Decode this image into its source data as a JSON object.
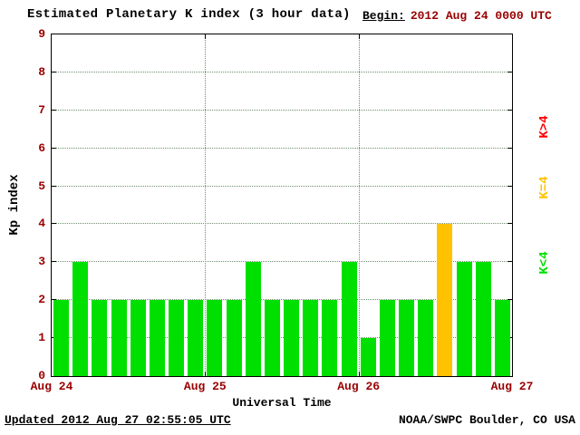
{
  "begin": {
    "label": "Begin:",
    "value": "2012 Aug 24 0000 UTC"
  },
  "footer": {
    "updated": "Updated 2012 Aug 27 02:55:05 UTC",
    "agency": "NOAA/SWPC Boulder, CO USA"
  },
  "legend": [
    {
      "label": "K>4",
      "color": "#ff0000"
    },
    {
      "label": "K=4",
      "color": "#ffc200"
    },
    {
      "label": "K<4",
      "color": "#00e000"
    }
  ],
  "colors": {
    "bar_green": "#00e000",
    "bar_yellow": "#ffc200",
    "bar_red": "#ff0000",
    "tick_labels": "#990000",
    "grid": "#6f8f6f"
  },
  "chart_data": {
    "type": "bar",
    "title": "Estimated Planetary K index (3 hour data)",
    "xlabel": "Universal Time",
    "ylabel": "Kp index",
    "ylim": [
      0,
      9
    ],
    "yticks": [
      0,
      1,
      2,
      3,
      4,
      5,
      6,
      7,
      8,
      9
    ],
    "x_tick_labels": [
      "Aug 24",
      "Aug 25",
      "Aug 26",
      "Aug 27"
    ],
    "bin_hours": 3,
    "bins_per_day": 8,
    "values": [
      2,
      3,
      2,
      2,
      2,
      2,
      2,
      2,
      2,
      2,
      3,
      2,
      2,
      2,
      2,
      3,
      1,
      2,
      2,
      2,
      4,
      3,
      3,
      2
    ],
    "color_rule": {
      "lt4": "#00e000",
      "eq4": "#ffc200",
      "gt4": "#ff0000"
    },
    "grid": "dotted horizontal at each Kp integer, dotted vertical at day boundaries",
    "legend_position": "right, rotated"
  }
}
